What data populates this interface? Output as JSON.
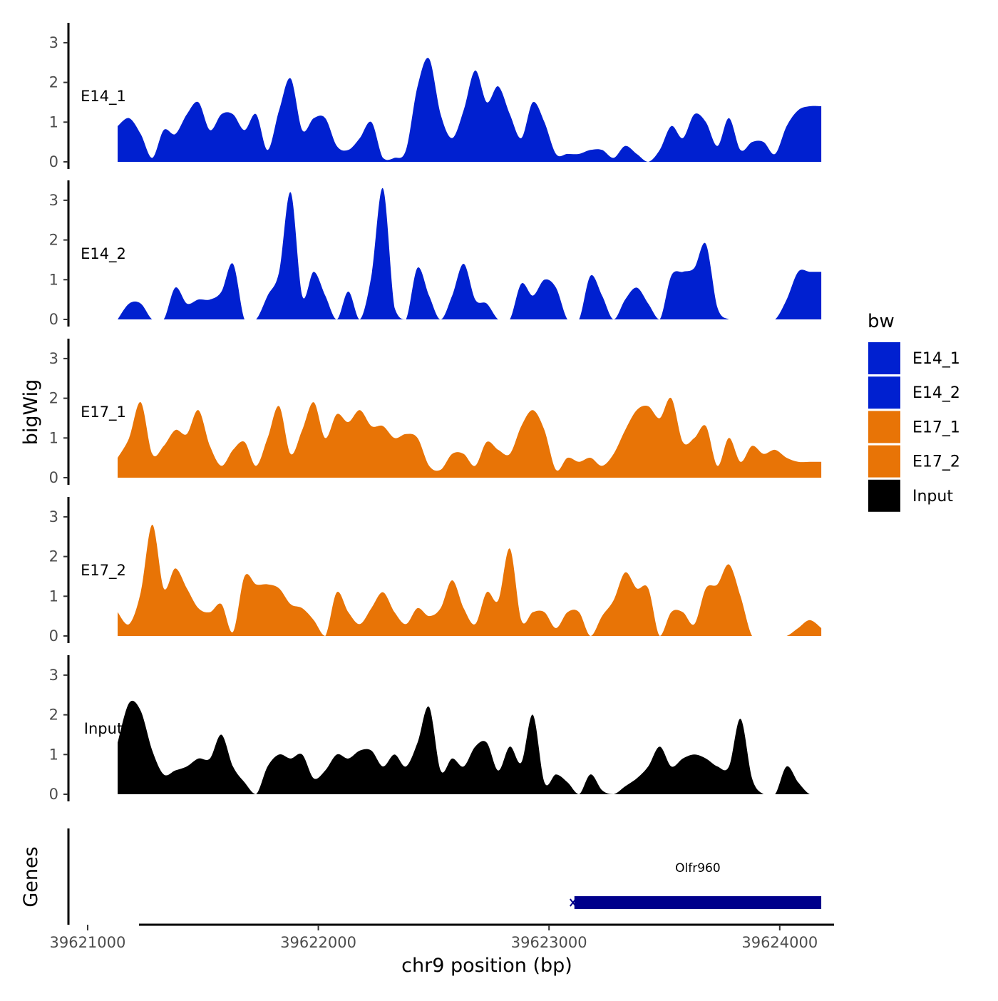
{
  "chart_data": {
    "type": "area",
    "title": "",
    "xlabel": "chr9 position (bp)",
    "ylabel": "bigWig",
    "genes_label": "Genes",
    "xlim": [
      39620960,
      39624220
    ],
    "x_ticks": [
      {
        "value": 39621000,
        "label": "39621000"
      },
      {
        "value": 39622000,
        "label": "39622000"
      },
      {
        "value": 39623000,
        "label": "39623000"
      },
      {
        "value": 39624000,
        "label": "39624000"
      }
    ],
    "ylim": [
      0,
      3.5
    ],
    "y_ticks": [
      {
        "value": 0,
        "label": "0"
      },
      {
        "value": 1,
        "label": "1"
      },
      {
        "value": 2,
        "label": "2"
      },
      {
        "value": 3,
        "label": "3"
      }
    ],
    "x_positions": [
      39621130,
      39621180,
      39621230,
      39621280,
      39621330,
      39621380,
      39621430,
      39621480,
      39621530,
      39621580,
      39621630,
      39621680,
      39621730,
      39621780,
      39621830,
      39621880,
      39621930,
      39621980,
      39622030,
      39622080,
      39622130,
      39622180,
      39622230,
      39622280,
      39622330,
      39622380,
      39622430,
      39622480,
      39622530,
      39622580,
      39622630,
      39622680,
      39622730,
      39622780,
      39622830,
      39622880,
      39622930,
      39622980,
      39623030,
      39623080,
      39623130,
      39623180,
      39623230,
      39623280,
      39623330,
      39623380,
      39623430,
      39623480,
      39623530,
      39623580,
      39623630,
      39623680,
      39623730,
      39623780,
      39623830,
      39623880,
      39623930,
      39623980,
      39624030,
      39624080,
      39624130,
      39624180
    ],
    "series": [
      {
        "name": "E14_1",
        "color": "#0020d0",
        "values": [
          0.9,
          1.1,
          0.7,
          0.1,
          0.8,
          0.7,
          1.2,
          1.5,
          0.8,
          1.2,
          1.2,
          0.8,
          1.2,
          0.3,
          1.3,
          2.1,
          0.8,
          1.1,
          1.1,
          0.4,
          0.3,
          0.6,
          1.0,
          0.1,
          0.1,
          0.3,
          1.9,
          2.6,
          1.2,
          0.6,
          1.3,
          2.3,
          1.5,
          1.9,
          1.2,
          0.6,
          1.5,
          1.0,
          0.2,
          0.2,
          0.2,
          0.3,
          0.3,
          0.1,
          0.4,
          0.2,
          0.0,
          0.3,
          0.9,
          0.6,
          1.2,
          1.0,
          0.4,
          1.1,
          0.3,
          0.5,
          0.5,
          0.2,
          0.9,
          1.3,
          1.4,
          1.4
        ]
      },
      {
        "name": "E14_2",
        "color": "#0020d0",
        "values": [
          0.0,
          0.4,
          0.4,
          0.0,
          0.0,
          0.8,
          0.4,
          0.5,
          0.5,
          0.7,
          1.4,
          0.0,
          0.0,
          0.6,
          1.2,
          3.2,
          0.6,
          1.2,
          0.6,
          0.0,
          0.7,
          0.0,
          1.1,
          3.3,
          0.3,
          0.0,
          1.3,
          0.6,
          0.0,
          0.6,
          1.4,
          0.5,
          0.4,
          0.0,
          0.0,
          0.9,
          0.6,
          1.0,
          0.8,
          0.0,
          0.0,
          1.1,
          0.6,
          0.0,
          0.5,
          0.8,
          0.4,
          0.0,
          1.1,
          1.2,
          1.3,
          1.9,
          0.3,
          0.0,
          0.0,
          0.0,
          0.0,
          0.0,
          0.5,
          1.2,
          1.2,
          1.2
        ]
      },
      {
        "name": "E17_1",
        "color": "#e87406",
        "values": [
          0.5,
          1.0,
          1.9,
          0.6,
          0.8,
          1.2,
          1.1,
          1.7,
          0.8,
          0.3,
          0.7,
          0.9,
          0.3,
          1.0,
          1.8,
          0.6,
          1.2,
          1.9,
          1.0,
          1.6,
          1.4,
          1.7,
          1.3,
          1.3,
          1.0,
          1.1,
          1.0,
          0.3,
          0.2,
          0.6,
          0.6,
          0.3,
          0.9,
          0.7,
          0.6,
          1.3,
          1.7,
          1.2,
          0.2,
          0.5,
          0.4,
          0.5,
          0.3,
          0.6,
          1.2,
          1.7,
          1.8,
          1.5,
          2.0,
          0.9,
          1.0,
          1.3,
          0.3,
          1.0,
          0.4,
          0.8,
          0.6,
          0.7,
          0.5,
          0.4,
          0.4,
          0.4
        ]
      },
      {
        "name": "E17_2",
        "color": "#e87406",
        "values": [
          0.6,
          0.3,
          1.1,
          2.8,
          1.2,
          1.7,
          1.2,
          0.7,
          0.6,
          0.8,
          0.1,
          1.5,
          1.3,
          1.3,
          1.2,
          0.8,
          0.7,
          0.4,
          0.0,
          1.1,
          0.6,
          0.3,
          0.7,
          1.1,
          0.6,
          0.3,
          0.7,
          0.5,
          0.7,
          1.4,
          0.7,
          0.3,
          1.1,
          0.9,
          2.2,
          0.4,
          0.6,
          0.6,
          0.2,
          0.6,
          0.6,
          0.0,
          0.5,
          0.9,
          1.6,
          1.2,
          1.2,
          0.0,
          0.6,
          0.6,
          0.3,
          1.2,
          1.3,
          1.8,
          1.0,
          0.0,
          0.0,
          0.0,
          0.0,
          0.2,
          0.4,
          0.2
        ]
      },
      {
        "name": "Input",
        "color": "#000000",
        "values": [
          1.3,
          2.3,
          2.1,
          1.1,
          0.5,
          0.6,
          0.7,
          0.9,
          0.9,
          1.5,
          0.7,
          0.3,
          0.0,
          0.7,
          1.0,
          0.9,
          1.0,
          0.4,
          0.6,
          1.0,
          0.9,
          1.1,
          1.1,
          0.7,
          1.0,
          0.7,
          1.3,
          2.2,
          0.6,
          0.9,
          0.7,
          1.2,
          1.3,
          0.6,
          1.2,
          0.8,
          2.0,
          0.3,
          0.5,
          0.3,
          0.0,
          0.5,
          0.1,
          0.0,
          0.2,
          0.4,
          0.7,
          1.2,
          0.7,
          0.9,
          1.0,
          0.9,
          0.7,
          0.7,
          1.9,
          0.4,
          0.0,
          0.0,
          0.7,
          0.3,
          0.0,
          0.0
        ]
      }
    ],
    "legend": {
      "title": "bw",
      "position": "right",
      "items": [
        {
          "label": "E14_1",
          "color": "#0020d0"
        },
        {
          "label": "E14_2",
          "color": "#0020d0"
        },
        {
          "label": "E17_1",
          "color": "#e87406"
        },
        {
          "label": "E17_2",
          "color": "#e87406"
        },
        {
          "label": "Input",
          "color": "#000000"
        }
      ]
    },
    "genes": [
      {
        "name": "Olfr960",
        "start": 39623110,
        "end": 39624180,
        "color": "#00008b"
      }
    ]
  }
}
